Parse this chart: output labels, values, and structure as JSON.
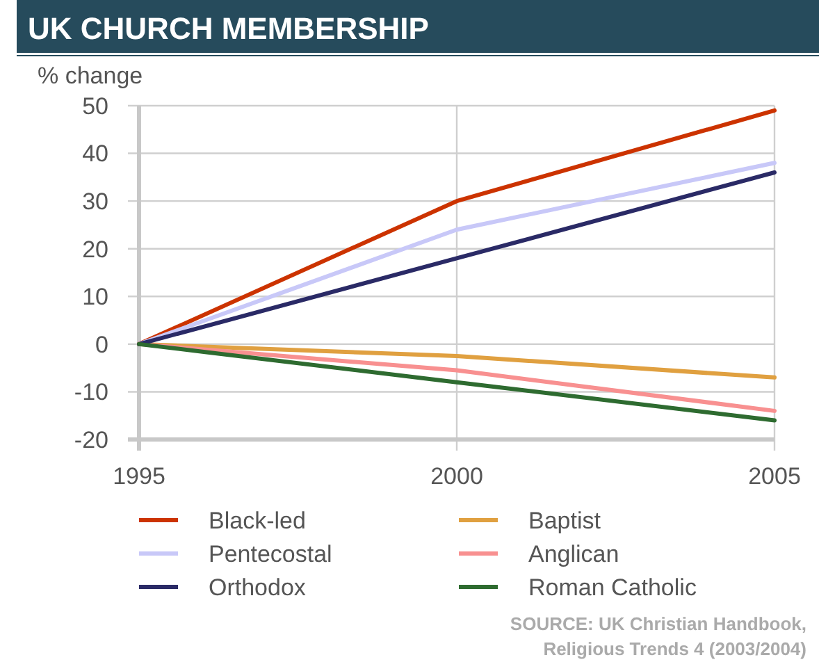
{
  "chart_data": {
    "type": "line",
    "title": "UK CHURCH MEMBERSHIP",
    "ylabel": "% change",
    "x": [
      1995,
      2000,
      2005
    ],
    "xlim": [
      1995,
      2005
    ],
    "xticks": [
      1995,
      2000,
      2005
    ],
    "ylim": [
      -20,
      50
    ],
    "yticks": [
      -20,
      -10,
      0,
      10,
      20,
      30,
      40,
      50
    ],
    "grid": true,
    "legend": "bottom",
    "marker": "none",
    "line_style": "solid",
    "series": [
      {
        "name": "Black-led",
        "color": "#cc3300",
        "values": [
          0,
          30,
          49
        ]
      },
      {
        "name": "Baptist",
        "color": "#e0a040",
        "values": [
          0,
          -2.5,
          -7
        ]
      },
      {
        "name": "Pentecostal",
        "color": "#c8c8f8",
        "values": [
          0,
          24,
          38
        ]
      },
      {
        "name": "Anglican",
        "color": "#f89090",
        "values": [
          0,
          -5.5,
          -14
        ]
      },
      {
        "name": "Orthodox",
        "color": "#2a2a66",
        "values": [
          0,
          18,
          36
        ]
      },
      {
        "name": "Roman Catholic",
        "color": "#2e6b30",
        "values": [
          0,
          -8,
          -16
        ]
      }
    ],
    "annotations": [
      "SOURCE: UK Christian Handbook,",
      "Religious Trends 4 (2003/2004)"
    ]
  }
}
